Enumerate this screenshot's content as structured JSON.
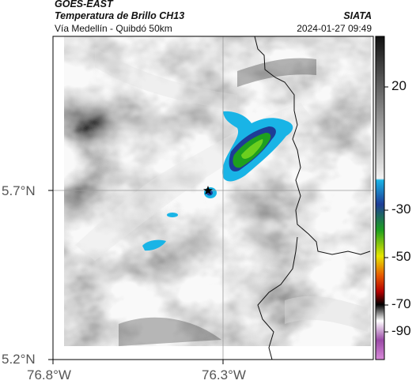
{
  "header": {
    "source": "GOES-EAST",
    "product": "Temperatura de Brillo CH13",
    "region": "Vía Medellín - Quibdó 50km",
    "org": "SIATA",
    "datetime": "2024-01-27 09:49"
  },
  "axes": {
    "lat_ticks": [
      "5.7°N",
      "5.2°N"
    ],
    "lon_ticks": [
      "76.8°W",
      "76.3°W"
    ]
  },
  "colorbar": {
    "ticks": [
      "20",
      "-30",
      "-50",
      "-70",
      "-90"
    ],
    "scale_colors": [
      "#111111",
      "#ffffff",
      "#19b4e6",
      "#1e3c96",
      "#1ea01e",
      "#e6e600",
      "#e65a00",
      "#b40000",
      "#000000",
      "#ffffff",
      "#c864c8"
    ]
  },
  "markers": {
    "station_icon": "black-star-icon"
  }
}
